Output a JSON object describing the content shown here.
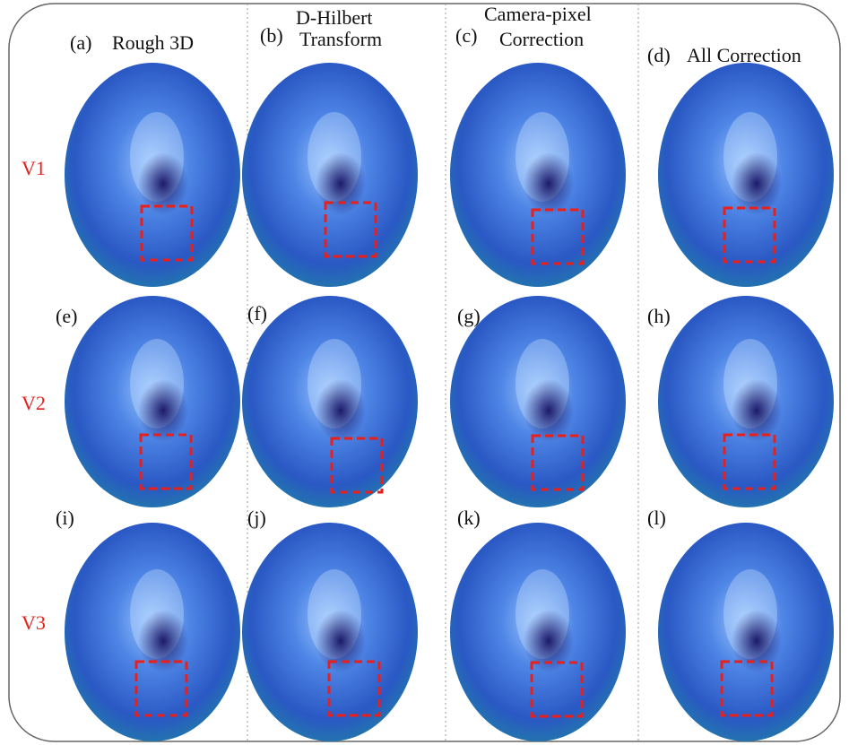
{
  "columns": [
    {
      "panel": "(a)",
      "title": [
        "Rough 3D"
      ]
    },
    {
      "panel": "(b)",
      "title": [
        "D-Hilbert",
        "Transform"
      ]
    },
    {
      "panel": "(c)",
      "title": [
        "Camera-pixel",
        "Correction"
      ]
    },
    {
      "panel": "(d)",
      "title": [
        "All Correction"
      ]
    }
  ],
  "panels": [
    [
      "(e)",
      "(f)",
      "(g)",
      "(h)"
    ],
    [
      "(i)",
      "(j)",
      "(k)",
      "(l)"
    ]
  ],
  "rows": [
    "V1",
    "V2",
    "V3"
  ]
}
